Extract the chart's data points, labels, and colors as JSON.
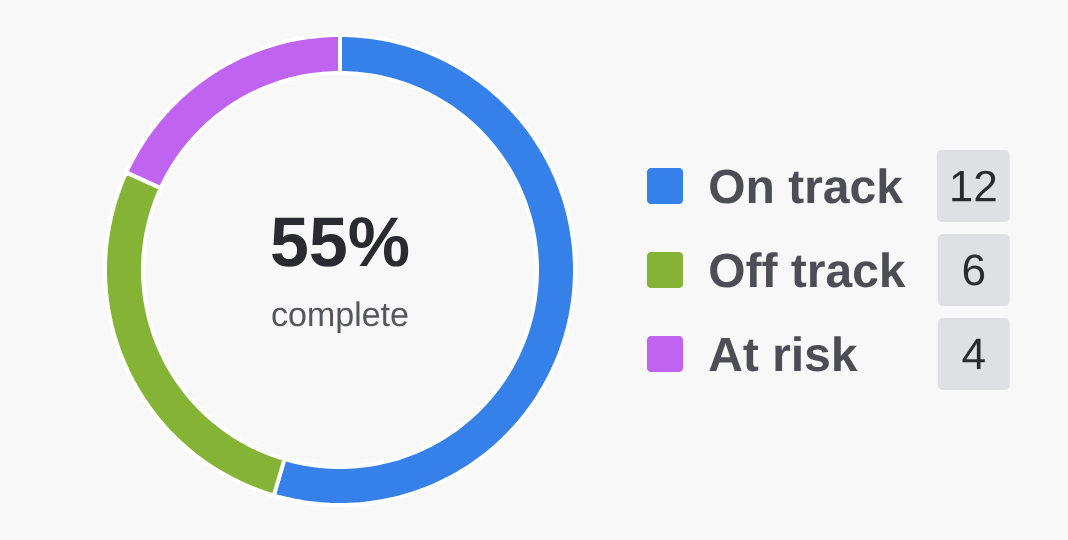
{
  "chart_data": {
    "type": "donut",
    "categories": [
      "On track",
      "Off track",
      "At risk"
    ],
    "values": [
      12,
      6,
      4
    ],
    "colors": [
      "#3680ea",
      "#84b336",
      "#bf63f0"
    ],
    "data_labels": true,
    "annotations": [
      "55%",
      "complete"
    ],
    "legend": "right"
  }
}
